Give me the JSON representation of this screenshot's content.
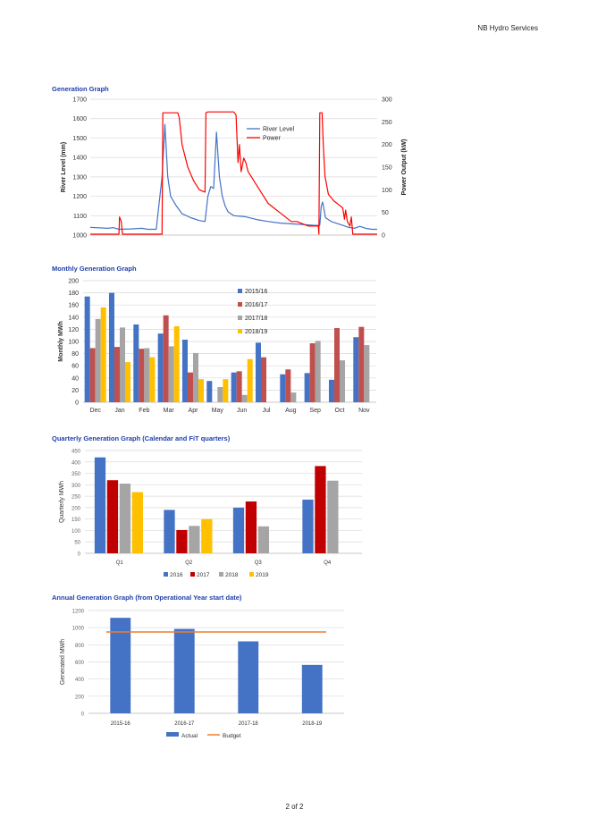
{
  "header": {
    "company": "NB Hydro Services"
  },
  "footer": {
    "page": "2 of 2"
  },
  "sections": {
    "generation": "Generation Graph",
    "monthly": "Monthly Generation Graph",
    "quarterly": "Quarterly Generation Graph (Calendar and FiT quarters)",
    "annual": "Annual Generation Graph (from Operational Year start date)"
  },
  "colors": {
    "river": "#4472c4",
    "power": "#ff0000",
    "s1516": "#4472c4",
    "s1617": "#c0504d",
    "s1718": "#a5a5a5",
    "s1819": "#ffc000",
    "q2016": "#4472c4",
    "q2017": "#c00000",
    "q2018": "#a5a5a5",
    "q2019": "#ffc000",
    "actual": "#4472c4",
    "budget": "#ed7d31"
  },
  "chart_data": [
    {
      "type": "line",
      "id": "generation",
      "ylabel": "River Level (mm)",
      "y2label": "Power Output (kW)",
      "ylim": [
        1000,
        1700
      ],
      "y2lim": [
        0,
        300
      ],
      "yticks": [
        1000,
        1100,
        1200,
        1300,
        1400,
        1500,
        1600,
        1700
      ],
      "y2ticks": [
        0,
        50,
        100,
        150,
        200,
        250,
        300
      ],
      "grid": true,
      "legend": "top-right",
      "x_unlabeled_range": [
        0,
        100
      ],
      "series": [
        {
          "name": "River Level",
          "axis": "left",
          "x": [
            0,
            6,
            8,
            10,
            14,
            18,
            20,
            23,
            25,
            26,
            27,
            28,
            30,
            32,
            35,
            38,
            40,
            41,
            42,
            43,
            44,
            45,
            46,
            47,
            48,
            50,
            54,
            58,
            62,
            66,
            70,
            74,
            78,
            80,
            80.5,
            81,
            82,
            84,
            88,
            90,
            92,
            94,
            96,
            98,
            100
          ],
          "y": [
            1040,
            1035,
            1038,
            1030,
            1032,
            1035,
            1030,
            1030,
            1300,
            1570,
            1300,
            1200,
            1150,
            1110,
            1090,
            1075,
            1070,
            1200,
            1250,
            1240,
            1530,
            1300,
            1200,
            1150,
            1120,
            1100,
            1095,
            1080,
            1070,
            1062,
            1058,
            1055,
            1050,
            1050,
            1150,
            1170,
            1090,
            1070,
            1050,
            1040,
            1035,
            1045,
            1035,
            1030,
            1030
          ]
        },
        {
          "name": "Power",
          "axis": "right",
          "x": [
            0,
            10,
            10.2,
            10.8,
            11.2,
            11.5,
            25,
            25.3,
            26,
            30.5,
            31,
            32,
            34,
            36,
            38,
            40,
            40.3,
            41,
            50,
            50.8,
            51.5,
            52,
            52.6,
            53.5,
            54.2,
            55,
            56,
            58,
            60,
            62,
            64,
            66,
            68,
            70,
            72,
            74,
            76,
            78,
            79.5,
            79.7,
            80,
            80.8,
            81.2,
            81.8,
            83,
            85,
            88,
            88.6,
            89,
            89.6,
            90.5,
            91,
            91.5,
            100
          ],
          "y": [
            2,
            2,
            40,
            30,
            2,
            2,
            2,
            270,
            270,
            270,
            260,
            200,
            150,
            120,
            100,
            95,
            270,
            272,
            272,
            265,
            160,
            200,
            140,
            170,
            160,
            140,
            130,
            110,
            90,
            70,
            60,
            50,
            40,
            30,
            30,
            25,
            20,
            20,
            20,
            2,
            270,
            270,
            200,
            130,
            90,
            75,
            60,
            35,
            55,
            30,
            20,
            40,
            2,
            2
          ]
        }
      ]
    },
    {
      "type": "bar",
      "id": "monthly",
      "ylabel": "Monthly MWh",
      "ylim": [
        0,
        200
      ],
      "yticks": [
        0,
        20,
        40,
        60,
        80,
        100,
        120,
        140,
        160,
        180,
        200
      ],
      "legend": "right-inside",
      "categories": [
        "Dec",
        "Jan",
        "Feb",
        "Mar",
        "Apr",
        "May",
        "Jun",
        "Jul",
        "Aug",
        "Sep",
        "Oct",
        "Nov"
      ],
      "series": [
        {
          "name": "2015/16",
          "values": [
            174,
            180,
            128,
            113,
            103,
            35,
            49,
            98,
            46,
            48,
            37,
            107
          ]
        },
        {
          "name": "2016/17",
          "values": [
            89,
            91,
            88,
            143,
            49,
            0,
            51,
            74,
            54,
            97,
            122,
            124
          ]
        },
        {
          "name": "2017/18",
          "values": [
            137,
            123,
            89,
            92,
            81,
            25,
            12,
            0,
            16,
            101,
            69,
            94
          ]
        },
        {
          "name": "2018/19",
          "values": [
            156,
            66,
            74,
            125,
            38,
            38,
            71,
            0,
            0,
            0,
            0,
            0
          ]
        }
      ]
    },
    {
      "type": "bar",
      "id": "quarterly",
      "ylabel": "Quarterly MWh",
      "ylim": [
        0,
        450
      ],
      "yticks": [
        0,
        50,
        100,
        150,
        200,
        250,
        300,
        350,
        400,
        450
      ],
      "legend": "bottom",
      "categories": [
        "Q1",
        "Q2",
        "Q3",
        "Q4"
      ],
      "series": [
        {
          "name": "2016",
          "values": [
            420,
            190,
            200,
            235
          ]
        },
        {
          "name": "2017",
          "values": [
            320,
            102,
            227,
            382
          ]
        },
        {
          "name": "2018",
          "values": [
            305,
            120,
            118,
            318
          ]
        },
        {
          "name": "2019",
          "values": [
            268,
            150,
            0,
            0
          ]
        }
      ]
    },
    {
      "type": "bar",
      "id": "annual",
      "ylabel": "Generated MWh",
      "ylim": [
        0,
        1200
      ],
      "yticks": [
        0,
        200,
        400,
        600,
        800,
        1000,
        1200
      ],
      "legend": "bottom",
      "categories": [
        "2015-16",
        "2016-17",
        "2017-18",
        "2018-19"
      ],
      "series": [
        {
          "name": "Actual",
          "values": [
            1115,
            985,
            840,
            565
          ]
        },
        {
          "name": "Budget",
          "values": [
            950,
            950,
            950,
            950
          ],
          "kind": "line"
        }
      ]
    }
  ]
}
